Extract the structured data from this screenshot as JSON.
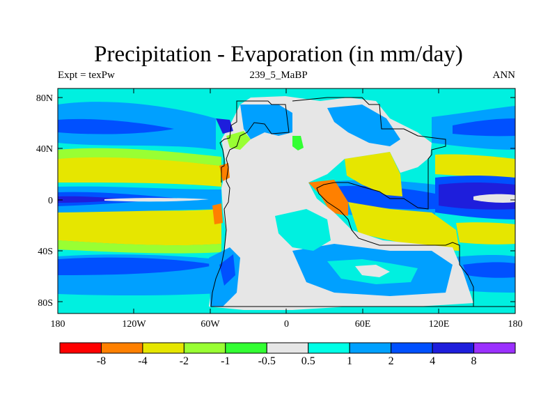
{
  "map": {
    "title": "Precipitation - Evaporation (in mm/day)",
    "subtitle_left": "Expt = texPw",
    "subtitle_center": "239_5_MaBP",
    "subtitle_right": "ANN",
    "y_ticks": [
      {
        "label": "80N",
        "lat": 80
      },
      {
        "label": "40N",
        "lat": 40
      },
      {
        "label": "0",
        "lat": 0
      },
      {
        "label": "40S",
        "lat": -40
      },
      {
        "label": "80S",
        "lat": -80
      }
    ],
    "x_ticks": [
      {
        "label": "180",
        "lon": -180
      },
      {
        "label": "120W",
        "lon": -120
      },
      {
        "label": "60W",
        "lon": -60
      },
      {
        "label": "0",
        "lon": 0
      },
      {
        "label": "60E",
        "lon": 60
      },
      {
        "label": "120E",
        "lon": 120
      },
      {
        "label": "180",
        "lon": 180
      }
    ]
  },
  "colorbar": {
    "colors": [
      "#ff0000",
      "#ff8000",
      "#e6e600",
      "#99ff33",
      "#33ff33",
      "#e6e6e6",
      "#00ffe6",
      "#00a0ff",
      "#0050ff",
      "#1e1edc",
      "#9b30ff"
    ],
    "labels": [
      "-8",
      "-4",
      "-2",
      "-1",
      "-0.5",
      "0.5",
      "1",
      "2",
      "4",
      "8"
    ]
  },
  "palette": {
    "ocean_base": "#00f0e0",
    "land": "#e6e6e6",
    "yellow": "#e6e600",
    "orange": "#ff8000",
    "light_green": "#99ff33",
    "green": "#33ff33",
    "light_blue": "#00a0ff",
    "blue": "#0050ff",
    "dark_blue": "#1e1edc"
  }
}
